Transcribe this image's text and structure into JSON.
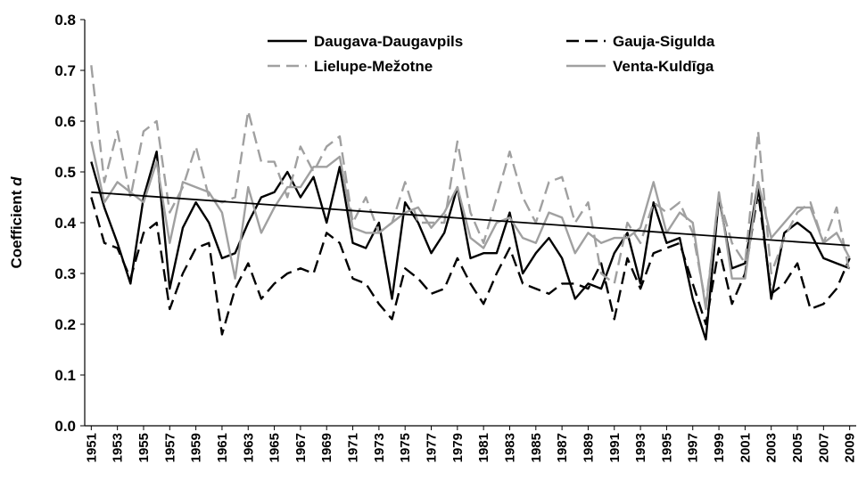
{
  "chart_data": {
    "type": "line",
    "ylabel": [
      "Coefficient",
      "d"
    ],
    "x": [
      1951,
      1952,
      1953,
      1954,
      1955,
      1956,
      1957,
      1958,
      1959,
      1960,
      1961,
      1962,
      1963,
      1964,
      1965,
      1966,
      1967,
      1968,
      1969,
      1970,
      1971,
      1972,
      1973,
      1974,
      1975,
      1976,
      1977,
      1978,
      1979,
      1980,
      1981,
      1982,
      1983,
      1984,
      1985,
      1986,
      1987,
      1988,
      1989,
      1990,
      1991,
      1992,
      1993,
      1994,
      1995,
      1996,
      1997,
      1998,
      1999,
      2000,
      2001,
      2002,
      2003,
      2004,
      2005,
      2006,
      2007,
      2008,
      2009
    ],
    "xlim": [
      1950.5,
      2009.5
    ],
    "xticks": [
      1951,
      1953,
      1955,
      1957,
      1959,
      1961,
      1963,
      1965,
      1967,
      1969,
      1971,
      1973,
      1975,
      1977,
      1979,
      1981,
      1983,
      1985,
      1987,
      1989,
      1991,
      1993,
      1995,
      1997,
      1999,
      2001,
      2003,
      2005,
      2007,
      2009
    ],
    "ylim": [
      0,
      0.8
    ],
    "yticks": [
      {
        "value": 0,
        "label": "0.0"
      },
      0.1,
      0.2,
      0.3,
      0.4,
      0.5,
      0.6,
      0.7,
      0.8
    ],
    "legend": "top",
    "series": [
      {
        "name": "Daugava-Daugavpils",
        "color": "#000000",
        "style": "solid",
        "values": [
          0.52,
          0.43,
          0.36,
          0.28,
          0.45,
          0.54,
          0.27,
          0.39,
          0.44,
          0.4,
          0.33,
          0.34,
          0.4,
          0.45,
          0.46,
          0.5,
          0.45,
          0.49,
          0.4,
          0.51,
          0.36,
          0.35,
          0.4,
          0.25,
          0.44,
          0.4,
          0.34,
          0.38,
          0.47,
          0.33,
          0.34,
          0.34,
          0.42,
          0.3,
          0.34,
          0.37,
          0.33,
          0.25,
          0.28,
          0.27,
          0.34,
          0.38,
          0.28,
          0.44,
          0.36,
          0.37,
          0.25,
          0.17,
          0.45,
          0.31,
          0.32,
          0.48,
          0.25,
          0.38,
          0.4,
          0.38,
          0.33,
          0.32,
          0.31
        ]
      },
      {
        "name": "Gauja-Sigulda",
        "color": "#000000",
        "style": "dashed",
        "values": [
          0.45,
          0.36,
          0.35,
          0.29,
          0.38,
          0.4,
          0.23,
          0.3,
          0.35,
          0.36,
          0.18,
          0.27,
          0.32,
          0.25,
          0.28,
          0.3,
          0.31,
          0.3,
          0.38,
          0.36,
          0.29,
          0.28,
          0.24,
          0.21,
          0.31,
          0.29,
          0.26,
          0.27,
          0.33,
          0.28,
          0.24,
          0.3,
          0.35,
          0.28,
          0.27,
          0.26,
          0.28,
          0.28,
          0.27,
          0.32,
          0.21,
          0.33,
          0.27,
          0.34,
          0.35,
          0.36,
          0.28,
          0.2,
          0.35,
          0.24,
          0.3,
          0.46,
          0.26,
          0.28,
          0.32,
          0.23,
          0.24,
          0.27,
          0.33
        ]
      },
      {
        "name": "Lielupe-Mežotne",
        "color": "#a0a0a0",
        "style": "dashed",
        "values": [
          0.71,
          0.48,
          0.58,
          0.45,
          0.58,
          0.6,
          0.42,
          0.47,
          0.55,
          0.45,
          0.44,
          0.45,
          0.62,
          0.52,
          0.52,
          0.45,
          0.55,
          0.5,
          0.55,
          0.57,
          0.4,
          0.45,
          0.38,
          0.4,
          0.48,
          0.4,
          0.4,
          0.4,
          0.56,
          0.42,
          0.36,
          0.45,
          0.54,
          0.45,
          0.4,
          0.48,
          0.49,
          0.4,
          0.44,
          0.3,
          0.28,
          0.4,
          0.36,
          0.44,
          0.42,
          0.44,
          0.38,
          0.24,
          0.45,
          0.36,
          0.32,
          0.58,
          0.3,
          0.37,
          0.42,
          0.44,
          0.36,
          0.43,
          0.3
        ]
      },
      {
        "name": "Venta-Kuldīga",
        "color": "#a0a0a0",
        "style": "solid",
        "values": [
          0.56,
          0.44,
          0.48,
          0.46,
          0.44,
          0.52,
          0.36,
          0.48,
          0.47,
          0.46,
          0.42,
          0.29,
          0.47,
          0.38,
          0.43,
          0.47,
          0.47,
          0.51,
          0.51,
          0.53,
          0.39,
          0.38,
          0.38,
          0.4,
          0.42,
          0.43,
          0.39,
          0.42,
          0.47,
          0.37,
          0.35,
          0.4,
          0.41,
          0.37,
          0.36,
          0.42,
          0.41,
          0.34,
          0.38,
          0.36,
          0.37,
          0.37,
          0.39,
          0.48,
          0.38,
          0.42,
          0.4,
          0.23,
          0.46,
          0.29,
          0.29,
          0.48,
          0.37,
          0.4,
          0.43,
          0.43,
          0.36,
          0.38,
          0.33
        ]
      }
    ],
    "trend": {
      "color": "#000000",
      "x": [
        1951,
        2009
      ],
      "values": [
        0.46,
        0.355
      ]
    }
  }
}
